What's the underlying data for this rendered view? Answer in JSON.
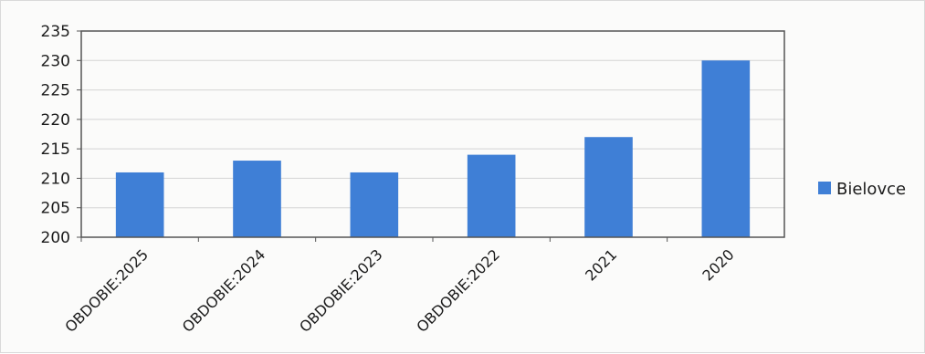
{
  "chart_data": {
    "type": "bar",
    "title": "",
    "xlabel": "",
    "ylabel": "",
    "categories": [
      "OBDOBIE:2025",
      "OBDOBIE:2024",
      "OBDOBIE:2023",
      "OBDOBIE:2022",
      "2021",
      "2020"
    ],
    "series": [
      {
        "name": "Bielovce",
        "values": [
          211,
          213,
          211,
          214,
          217,
          230
        ],
        "color": "#3f7fd6"
      }
    ],
    "ylim": [
      200,
      235
    ],
    "yticks": [
      200,
      205,
      210,
      215,
      220,
      225,
      230,
      235
    ],
    "grid": true,
    "legend_position": "right"
  }
}
